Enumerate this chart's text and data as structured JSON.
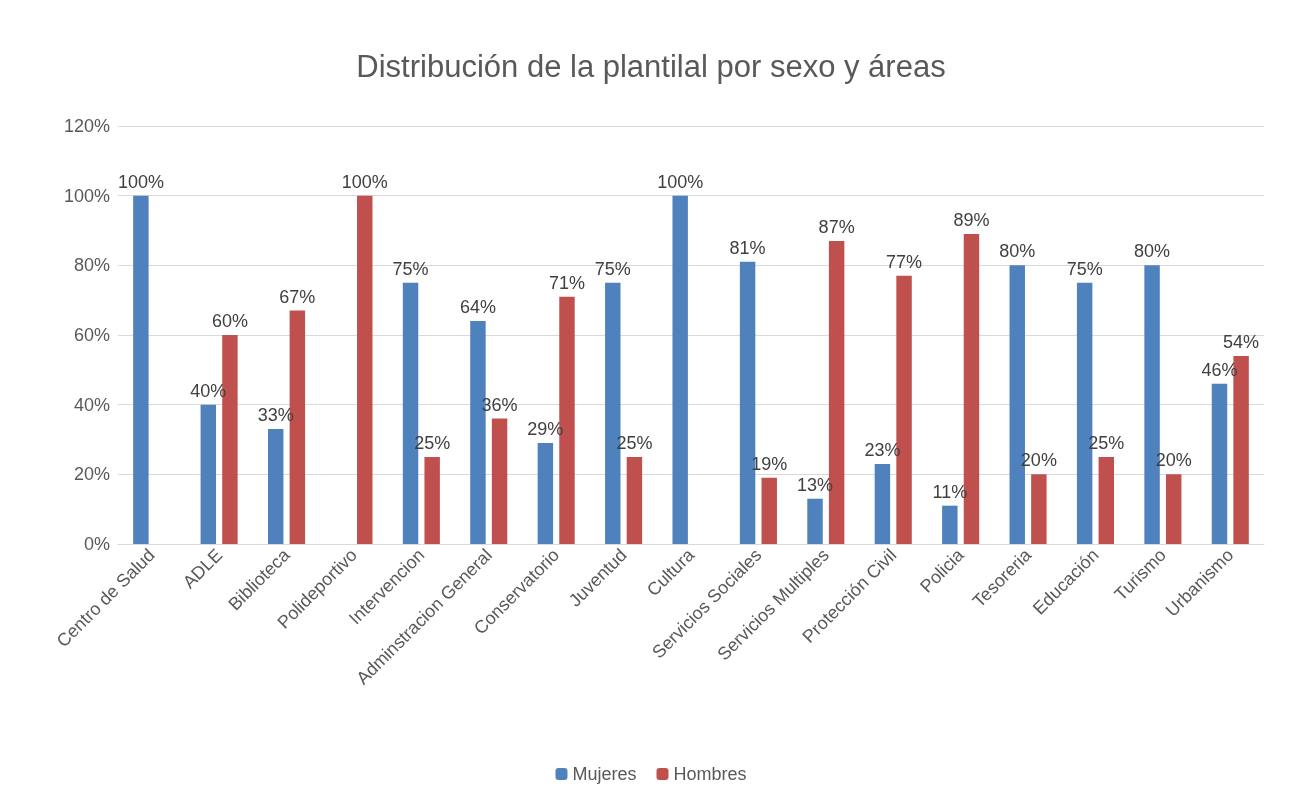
{
  "chart_data": {
    "type": "bar",
    "title": "Distribución de la plantilal por sexo y áreas",
    "categories": [
      "Centro de Salud",
      "ADLE",
      "Biblioteca",
      "Polideportivo",
      "Intervencion",
      "Adminstracion General",
      "Conservatorio",
      "Juventud",
      "Cultura",
      "Servicios Sociales",
      "Servicios Multiples",
      "Protección Civil",
      "Policia",
      "Tesoreria",
      "Educación",
      "Turismo",
      "Urbanismo"
    ],
    "series": [
      {
        "name": "Mujeres",
        "color": "#4f81bd",
        "values": [
          100,
          40,
          33,
          0,
          75,
          64,
          29,
          75,
          100,
          81,
          13,
          23,
          11,
          80,
          75,
          80,
          46
        ],
        "value_labels": [
          "100%",
          "40%",
          "33%",
          null,
          "75%",
          "64%",
          "29%",
          "75%",
          "100%",
          "81%",
          "13%",
          "23%",
          "11%",
          "80%",
          "75%",
          "80%",
          "46%"
        ]
      },
      {
        "name": "Hombres",
        "color": "#c0504d",
        "values": [
          0,
          60,
          67,
          100,
          25,
          36,
          71,
          25,
          0,
          19,
          87,
          77,
          89,
          20,
          25,
          20,
          54
        ],
        "value_labels": [
          null,
          "60%",
          "67%",
          "100%",
          "25%",
          "36%",
          "71%",
          "25%",
          null,
          "19%",
          "87%",
          "77%",
          "89%",
          "20%",
          "25%",
          "20%",
          "54%"
        ]
      }
    ],
    "ylim": [
      0,
      120
    ],
    "yticks": [
      {
        "value": 0,
        "label": "0%"
      },
      {
        "value": 20,
        "label": "20%"
      },
      {
        "value": 40,
        "label": "40%"
      },
      {
        "value": 60,
        "label": "60%"
      },
      {
        "value": 80,
        "label": "80%"
      },
      {
        "value": 100,
        "label": "100%"
      },
      {
        "value": 120,
        "label": "120%"
      }
    ],
    "grid": "y",
    "legend": "bottom"
  }
}
